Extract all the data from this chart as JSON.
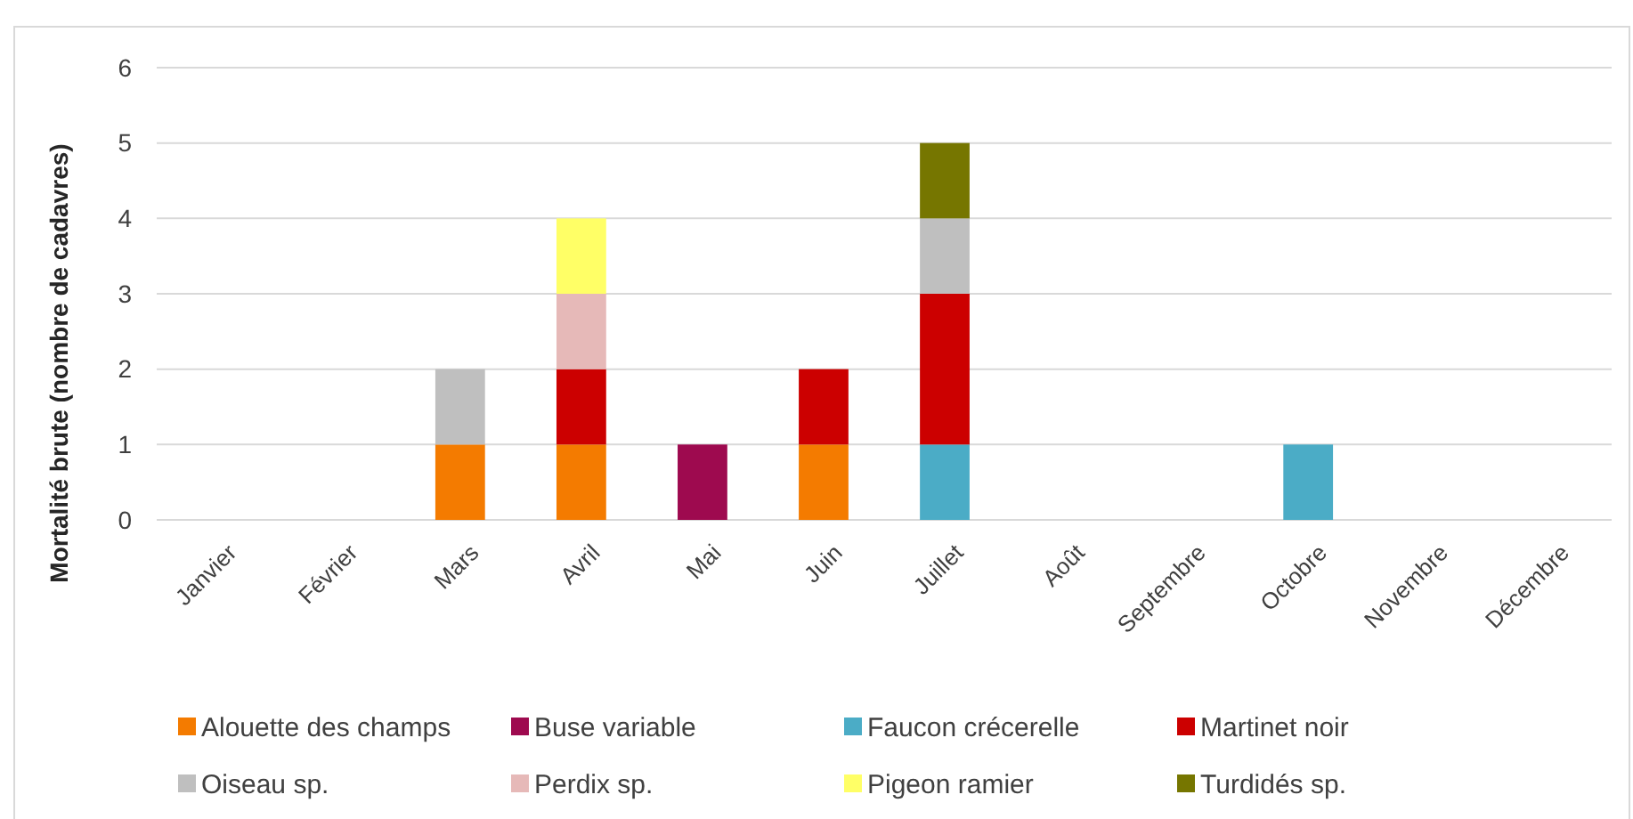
{
  "chart_data": {
    "type": "bar",
    "stacked": true,
    "ylabel": "Mortalité brute (nombre de cadavres)",
    "categories": [
      "Janvier",
      "Février",
      "Mars",
      "Avril",
      "Mai",
      "Juin",
      "Juillet",
      "Août",
      "Septembre",
      "Octobre",
      "Novembre",
      "Décembre"
    ],
    "ylim": [
      0,
      6
    ],
    "yticks": [
      0,
      1,
      2,
      3,
      4,
      5,
      6
    ],
    "grid": "y",
    "legend": "bottom",
    "series": [
      {
        "name": "Alouette des champs",
        "color": "#f47b00",
        "values": [
          null,
          null,
          1,
          1,
          null,
          1,
          null,
          null,
          null,
          null,
          null,
          null
        ]
      },
      {
        "name": "Buse variable",
        "color": "#9e0a4f",
        "values": [
          null,
          null,
          null,
          null,
          1,
          null,
          null,
          null,
          null,
          null,
          null,
          null
        ]
      },
      {
        "name": "Faucon crécerelle",
        "color": "#4bacc6",
        "values": [
          null,
          null,
          null,
          null,
          null,
          null,
          1,
          null,
          null,
          1,
          null,
          null
        ]
      },
      {
        "name": "Martinet noir",
        "color": "#cc0000",
        "values": [
          null,
          null,
          null,
          1,
          null,
          1,
          2,
          null,
          null,
          null,
          null,
          null
        ]
      },
      {
        "name": "Oiseau sp.",
        "color": "#bfbfbf",
        "values": [
          null,
          null,
          1,
          null,
          null,
          null,
          1,
          null,
          null,
          null,
          null,
          null
        ]
      },
      {
        "name": "Perdix sp.",
        "color": "#e6b9b8",
        "values": [
          null,
          null,
          null,
          1,
          null,
          null,
          null,
          null,
          null,
          null,
          null,
          null
        ]
      },
      {
        "name": "Pigeon ramier",
        "color": "#ffff66",
        "values": [
          null,
          null,
          null,
          1,
          null,
          null,
          null,
          null,
          null,
          null,
          null,
          null
        ]
      },
      {
        "name": "Turdidés sp.",
        "color": "#767600",
        "values": [
          null,
          null,
          null,
          null,
          null,
          null,
          1,
          null,
          null,
          null,
          null,
          null
        ]
      }
    ]
  }
}
